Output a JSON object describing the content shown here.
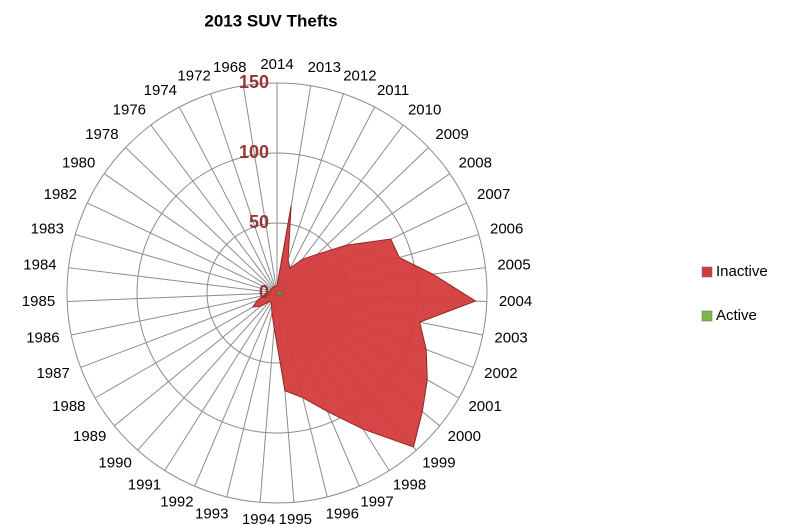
{
  "chart_data": {
    "type": "radar",
    "title": "2013 SUV Thefts",
    "categories": [
      "2014",
      "2013",
      "2012",
      "2011",
      "2010",
      "2009",
      "2008",
      "2007",
      "2006",
      "2005",
      "2004",
      "2003",
      "2002",
      "2001",
      "2000",
      "1999",
      "1998",
      "1997",
      "1996",
      "1995",
      "1994",
      "1993",
      "1992",
      "1991",
      "1990",
      "1989",
      "1988",
      "1987",
      "1986",
      "1985",
      "1984",
      "1983",
      "1982",
      "1980",
      "1978",
      "1976",
      "1974",
      "1972",
      "1968"
    ],
    "series": [
      {
        "name": "Inactive",
        "color": "#d43c3c",
        "values": [
          5,
          63,
          25,
          20,
          30,
          40,
          60,
          90,
          91,
          112,
          142,
          104,
          114,
          124,
          134,
          147,
          115,
          92,
          77,
          70,
          25,
          15,
          10,
          8,
          8,
          15,
          20,
          15,
          10,
          8,
          6,
          5,
          5,
          5,
          5,
          5,
          5,
          5,
          5
        ]
      },
      {
        "name": "Active",
        "color": "#7ab648",
        "values": [
          0,
          0,
          0,
          0,
          0,
          1,
          1,
          2,
          2,
          3,
          5,
          4,
          3,
          2,
          2,
          2,
          1,
          1,
          1,
          1,
          0,
          0,
          0,
          0,
          0,
          0,
          0,
          0,
          0,
          0,
          0,
          0,
          0,
          0,
          0,
          0,
          0,
          0,
          0
        ]
      }
    ],
    "ylim": [
      0,
      150
    ],
    "yticks": [
      0,
      50,
      100,
      150
    ],
    "grid": true,
    "legend": "right"
  }
}
